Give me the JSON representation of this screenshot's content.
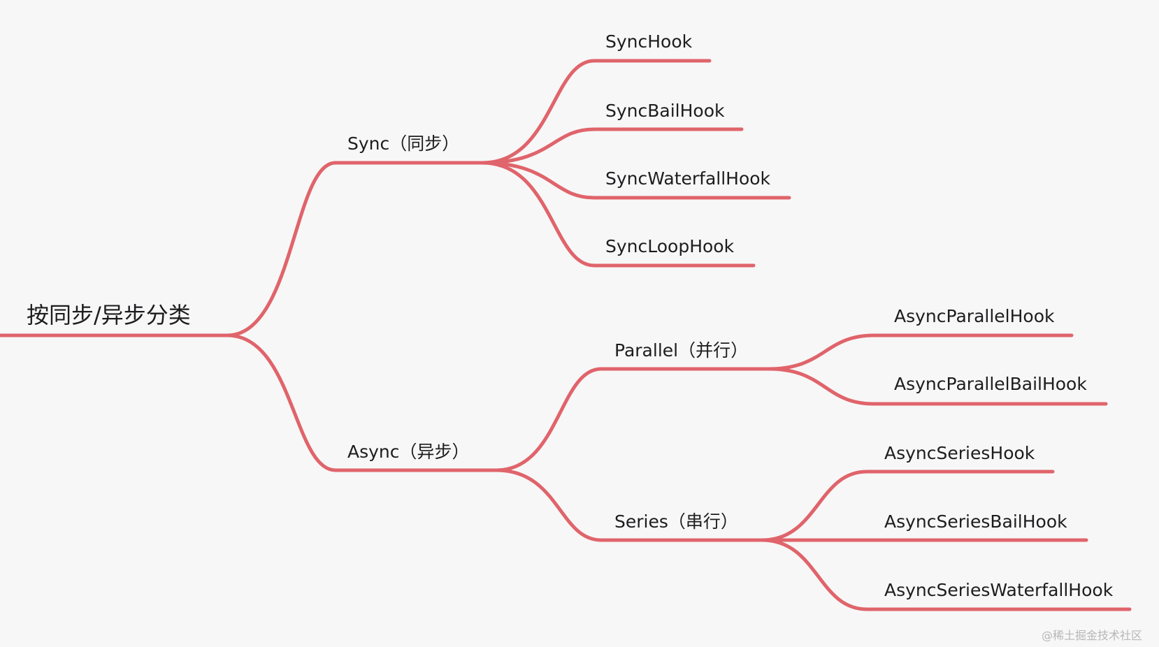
{
  "diagram": {
    "type": "mind-map",
    "line_color": "#e0646b",
    "background_color": "#f7f7f7",
    "root": {
      "label": "按同步/异步分类",
      "children": [
        {
          "label": "Sync（同步）",
          "children": [
            {
              "label": "SyncHook"
            },
            {
              "label": "SyncBailHook"
            },
            {
              "label": "SyncWaterfallHook"
            },
            {
              "label": "SyncLoopHook"
            }
          ]
        },
        {
          "label": "Async（异步）",
          "children": [
            {
              "label": "Parallel（并行）",
              "children": [
                {
                  "label": "AsyncParallelHook"
                },
                {
                  "label": "AsyncParallelBailHook"
                }
              ]
            },
            {
              "label": "Series（串行）",
              "children": [
                {
                  "label": "AsyncSeriesHook"
                },
                {
                  "label": "AsyncSeriesBailHook"
                },
                {
                  "label": "AsyncSeriesWaterfallHook"
                }
              ]
            }
          ]
        }
      ]
    }
  },
  "watermark": "@稀土掘金技术社区"
}
